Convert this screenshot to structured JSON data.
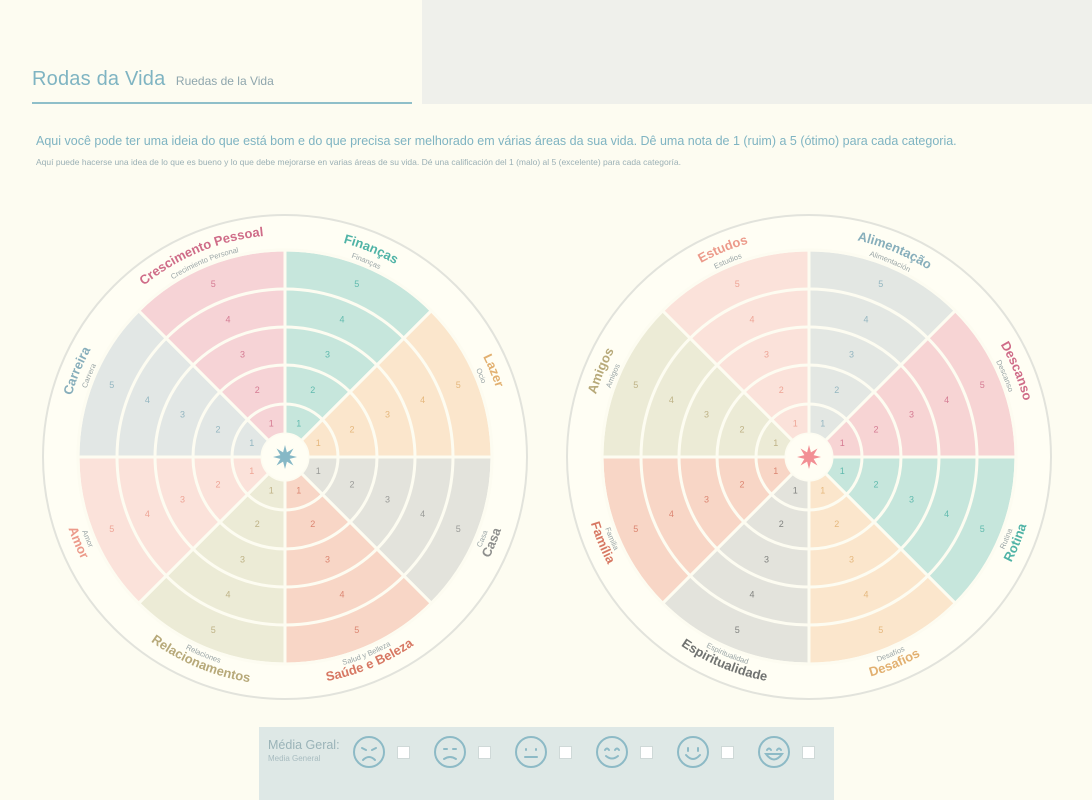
{
  "header": {
    "title": "Rodas da Vida",
    "subtitle": "Ruedas de la Vida"
  },
  "intro": {
    "pt": "Aqui você pode ter uma ideia do que está bom e do que precisa ser melhorado em várias áreas da sua vida. Dê uma nota de 1 (ruim) a 5 (ótimo) para cada categoria.",
    "es": "Aquí puede hacerse una idea de lo que es bueno y lo que debe mejorarse en varias áreas de su vida. Dé una calificación del 1 (malo) al 5 (excelente) para cada categoría."
  },
  "wheels": [
    {
      "star_color": "#86b8c6",
      "segments": [
        {
          "label": "Finanças",
          "sublabel": "Finanças",
          "color": "#c6e6dc",
          "text_color": "#4fb3a6"
        },
        {
          "label": "Lazer",
          "sublabel": "Ocio",
          "color": "#fbe6cc",
          "text_color": "#e2b070"
        },
        {
          "label": "Casa",
          "sublabel": "Casa",
          "color": "#e3e3dc",
          "text_color": "#8e8f8d"
        },
        {
          "label": "Saúde e Beleza",
          "sublabel": "Salud y Belleza",
          "color": "#f8d6c6",
          "text_color": "#d77863"
        },
        {
          "label": "Relacionamentos",
          "sublabel": "Relaciones",
          "color": "#ecebd6",
          "text_color": "#b7a979"
        },
        {
          "label": "Amor",
          "sublabel": "Amor",
          "color": "#fbe2da",
          "text_color": "#ec9a8a"
        },
        {
          "label": "Carreira",
          "sublabel": "Carrera",
          "color": "#e2e7e5",
          "text_color": "#87aebb"
        },
        {
          "label": "Crescimento Pessoal",
          "sublabel": "Crecimiento Personal",
          "color": "#f6d3d6",
          "text_color": "#cf6c88"
        }
      ]
    },
    {
      "star_color": "#f28f94",
      "segments": [
        {
          "label": "Alimentação",
          "sublabel": "Alimentación",
          "color": "#e3e7e3",
          "text_color": "#87aebb"
        },
        {
          "label": "Descanso",
          "sublabel": "Descanso",
          "color": "#f7d4d4",
          "text_color": "#cf6c88"
        },
        {
          "label": "Rotina",
          "sublabel": "Rutina",
          "color": "#c6e6dc",
          "text_color": "#4fb3a6"
        },
        {
          "label": "Desafios",
          "sublabel": "Desafíos",
          "color": "#fbe6cc",
          "text_color": "#e2b070"
        },
        {
          "label": "Espiritualidade",
          "sublabel": "Espiritualidad",
          "color": "#e3e3dc",
          "text_color": "#707270"
        },
        {
          "label": "Família",
          "sublabel": "Familia",
          "color": "#f8d6c6",
          "text_color": "#d77863"
        },
        {
          "label": "Amigos",
          "sublabel": "Amigos",
          "color": "#ecebd6",
          "text_color": "#b7a979"
        },
        {
          "label": "Estudos",
          "sublabel": "Estudios",
          "color": "#fbe2da",
          "text_color": "#ec9a8a"
        }
      ]
    }
  ],
  "ring_numbers": [
    "1",
    "2",
    "3",
    "4",
    "5"
  ],
  "footer": {
    "label_pt": "Média Geral:",
    "label_es": "Media General",
    "moods": [
      "very-sad-face-icon",
      "sad-face-icon",
      "neutral-face-icon",
      "content-face-icon",
      "happy-face-icon",
      "very-happy-face-icon"
    ]
  }
}
